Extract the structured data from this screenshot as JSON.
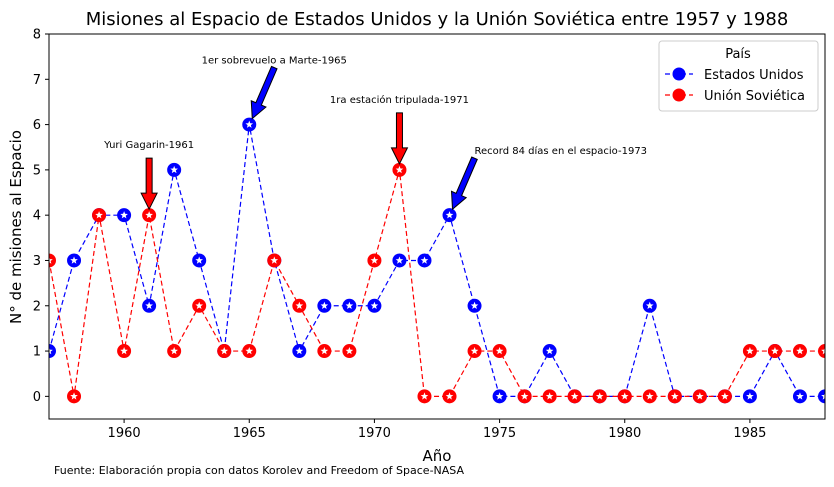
{
  "chart_data": {
    "type": "line",
    "title": "Misiones al Espacio de Estados Unidos y la Unión Soviética entre 1957 y 1988",
    "xlabel": "Año",
    "ylabel": "N° de misiones al Espacio",
    "xlim": [
      1957,
      1988
    ],
    "ylim": [
      -0.5,
      8
    ],
    "x_ticks": [
      1960,
      1965,
      1970,
      1975,
      1980,
      1985
    ],
    "y_ticks": [
      0,
      1,
      2,
      3,
      4,
      5,
      6,
      7,
      8
    ],
    "grid": false,
    "legend": {
      "title": "País",
      "position": "top-right"
    },
    "x": [
      1957,
      1958,
      1959,
      1960,
      1961,
      1962,
      1963,
      1964,
      1965,
      1966,
      1967,
      1968,
      1969,
      1970,
      1971,
      1972,
      1973,
      1974,
      1975,
      1976,
      1977,
      1978,
      1979,
      1980,
      1981,
      1982,
      1983,
      1984,
      1985,
      1986,
      1987,
      1988
    ],
    "series": [
      {
        "name": "Estados Unidos",
        "color": "#0000ff",
        "values": [
          1,
          3,
          4,
          4,
          2,
          5,
          3,
          1,
          6,
          3,
          1,
          2,
          2,
          2,
          3,
          3,
          4,
          2,
          0,
          0,
          1,
          0,
          0,
          0,
          2,
          0,
          0,
          0,
          0,
          1,
          0,
          0
        ]
      },
      {
        "name": "Unión Soviética",
        "color": "#ff0000",
        "values": [
          3,
          0,
          4,
          1,
          4,
          1,
          2,
          1,
          1,
          3,
          2,
          1,
          1,
          3,
          5,
          0,
          0,
          1,
          1,
          0,
          0,
          0,
          0,
          0,
          0,
          0,
          0,
          0,
          1,
          1,
          1,
          1
        ]
      }
    ],
    "annotations": [
      {
        "text": "Yuri Gagarin-1961",
        "x": 1961,
        "y": 4,
        "arrow_color": "#ff0000"
      },
      {
        "text": "1er sobrevuelo a Marte-1965",
        "x": 1965,
        "y": 6,
        "arrow_color": "#0000ff"
      },
      {
        "text": "1ra estación tripulada-1971",
        "x": 1971,
        "y": 5,
        "arrow_color": "#ff0000"
      },
      {
        "text": "Record 84 días en el espacio-1973",
        "x": 1973,
        "y": 4,
        "arrow_color": "#0000ff"
      }
    ],
    "source": "Fuente: Elaboración propia con datos Korolev and Freedom of Space-NASA"
  }
}
